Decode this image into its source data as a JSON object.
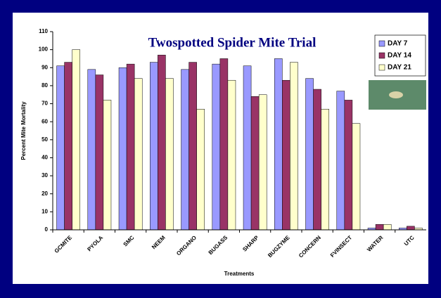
{
  "chart_data": {
    "type": "bar",
    "title": "Twospotted Spider Mite Trial",
    "x_label": "Treatments",
    "y_label": "Percent Mite Mortality",
    "categories": [
      "GCMITE",
      "PYOLA",
      "SMC",
      "NEEM",
      "ORGANO",
      "BUGASS",
      "SHARP",
      "BUGZYME",
      "CONCERN",
      "FVINSECT",
      "WATER",
      "UTC"
    ],
    "series": [
      {
        "name": "DAY 7",
        "color": "#9999ff",
        "values": [
          91,
          89,
          90,
          93,
          89,
          92,
          91,
          95,
          84,
          77,
          1,
          1
        ]
      },
      {
        "name": "DAY 14",
        "color": "#993366",
        "values": [
          93,
          86,
          92,
          97,
          93,
          95,
          74,
          83,
          78,
          72,
          3,
          2
        ]
      },
      {
        "name": "DAY 21",
        "color": "#ffffcc",
        "values": [
          100,
          72,
          84,
          84,
          67,
          83,
          75,
          93,
          67,
          59,
          3,
          1
        ]
      }
    ],
    "ylim": [
      0,
      110
    ],
    "yticks": [
      0,
      10,
      20,
      30,
      40,
      50,
      60,
      70,
      80,
      90,
      100,
      110
    ],
    "legend": "upper right"
  }
}
